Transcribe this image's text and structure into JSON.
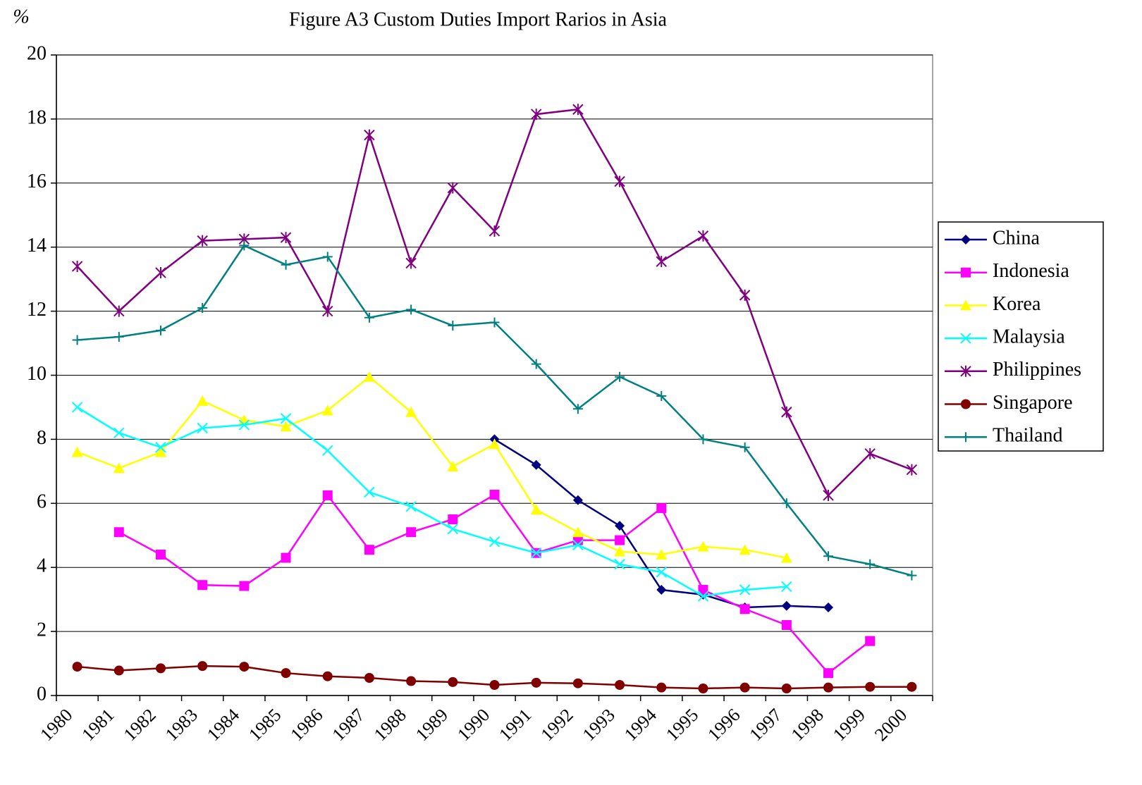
{
  "chart_data": {
    "type": "line",
    "title": "Figure A3  Custom Duties Import Rarios in Asia",
    "y_label": "%",
    "categories": [
      "1980",
      "1981",
      "1982",
      "1983",
      "1984",
      "1985",
      "1986",
      "1987",
      "1988",
      "1989",
      "1990",
      "1991",
      "1992",
      "1993",
      "1994",
      "1995",
      "1996",
      "1997",
      "1998",
      "1999",
      "2000"
    ],
    "ylim": [
      0,
      20
    ],
    "yticks": [
      0,
      2,
      4,
      6,
      8,
      10,
      12,
      14,
      16,
      18,
      20
    ],
    "grid": true,
    "legend": "right",
    "series": [
      {
        "name": "China",
        "color": "#000080",
        "marker": "diamond",
        "values": [
          null,
          null,
          null,
          null,
          null,
          null,
          null,
          null,
          null,
          null,
          8.0,
          7.2,
          6.1,
          5.3,
          3.3,
          3.15,
          2.75,
          2.8,
          2.75,
          null,
          null
        ]
      },
      {
        "name": "Indonesia",
        "color": "#ff00ff",
        "marker": "square",
        "values": [
          null,
          5.1,
          4.4,
          3.45,
          3.42,
          4.3,
          6.25,
          4.55,
          5.1,
          5.5,
          6.27,
          4.45,
          4.85,
          4.85,
          5.85,
          3.3,
          2.7,
          2.2,
          0.7,
          1.7,
          null
        ]
      },
      {
        "name": "Korea",
        "color": "#ffff00",
        "marker": "triangle",
        "values": [
          7.6,
          7.1,
          7.6,
          9.2,
          8.6,
          8.4,
          8.9,
          9.95,
          8.85,
          7.15,
          7.85,
          5.8,
          5.1,
          4.5,
          4.4,
          4.65,
          4.55,
          4.3,
          null,
          null,
          null
        ]
      },
      {
        "name": "Malaysia",
        "color": "#00ffff",
        "marker": "x",
        "values": [
          9.0,
          8.2,
          7.75,
          8.35,
          8.45,
          8.65,
          7.65,
          6.35,
          5.9,
          5.2,
          4.8,
          4.45,
          4.7,
          4.1,
          3.85,
          3.1,
          3.3,
          3.4,
          null,
          null,
          null
        ]
      },
      {
        "name": "Philippines",
        "color": "#800080",
        "marker": "asterisk",
        "values": [
          13.4,
          12.0,
          13.2,
          14.2,
          14.25,
          14.3,
          12.0,
          17.5,
          13.5,
          15.85,
          14.5,
          18.15,
          18.3,
          16.05,
          13.55,
          14.35,
          12.5,
          8.85,
          6.25,
          7.55,
          7.05
        ]
      },
      {
        "name": "Singapore",
        "color": "#800000",
        "marker": "circle",
        "values": [
          0.9,
          0.78,
          0.85,
          0.92,
          0.9,
          0.7,
          0.6,
          0.55,
          0.45,
          0.42,
          0.33,
          0.4,
          0.38,
          0.33,
          0.25,
          0.22,
          0.25,
          0.22,
          0.25,
          0.27,
          0.27
        ]
      },
      {
        "name": "Thailand",
        "color": "#008080",
        "marker": "plus",
        "values": [
          11.1,
          11.2,
          11.4,
          12.1,
          14.05,
          13.45,
          13.7,
          11.8,
          12.05,
          11.55,
          11.65,
          10.35,
          8.95,
          9.95,
          9.35,
          8.0,
          7.75,
          6.0,
          4.35,
          4.1,
          3.75
        ]
      }
    ]
  }
}
